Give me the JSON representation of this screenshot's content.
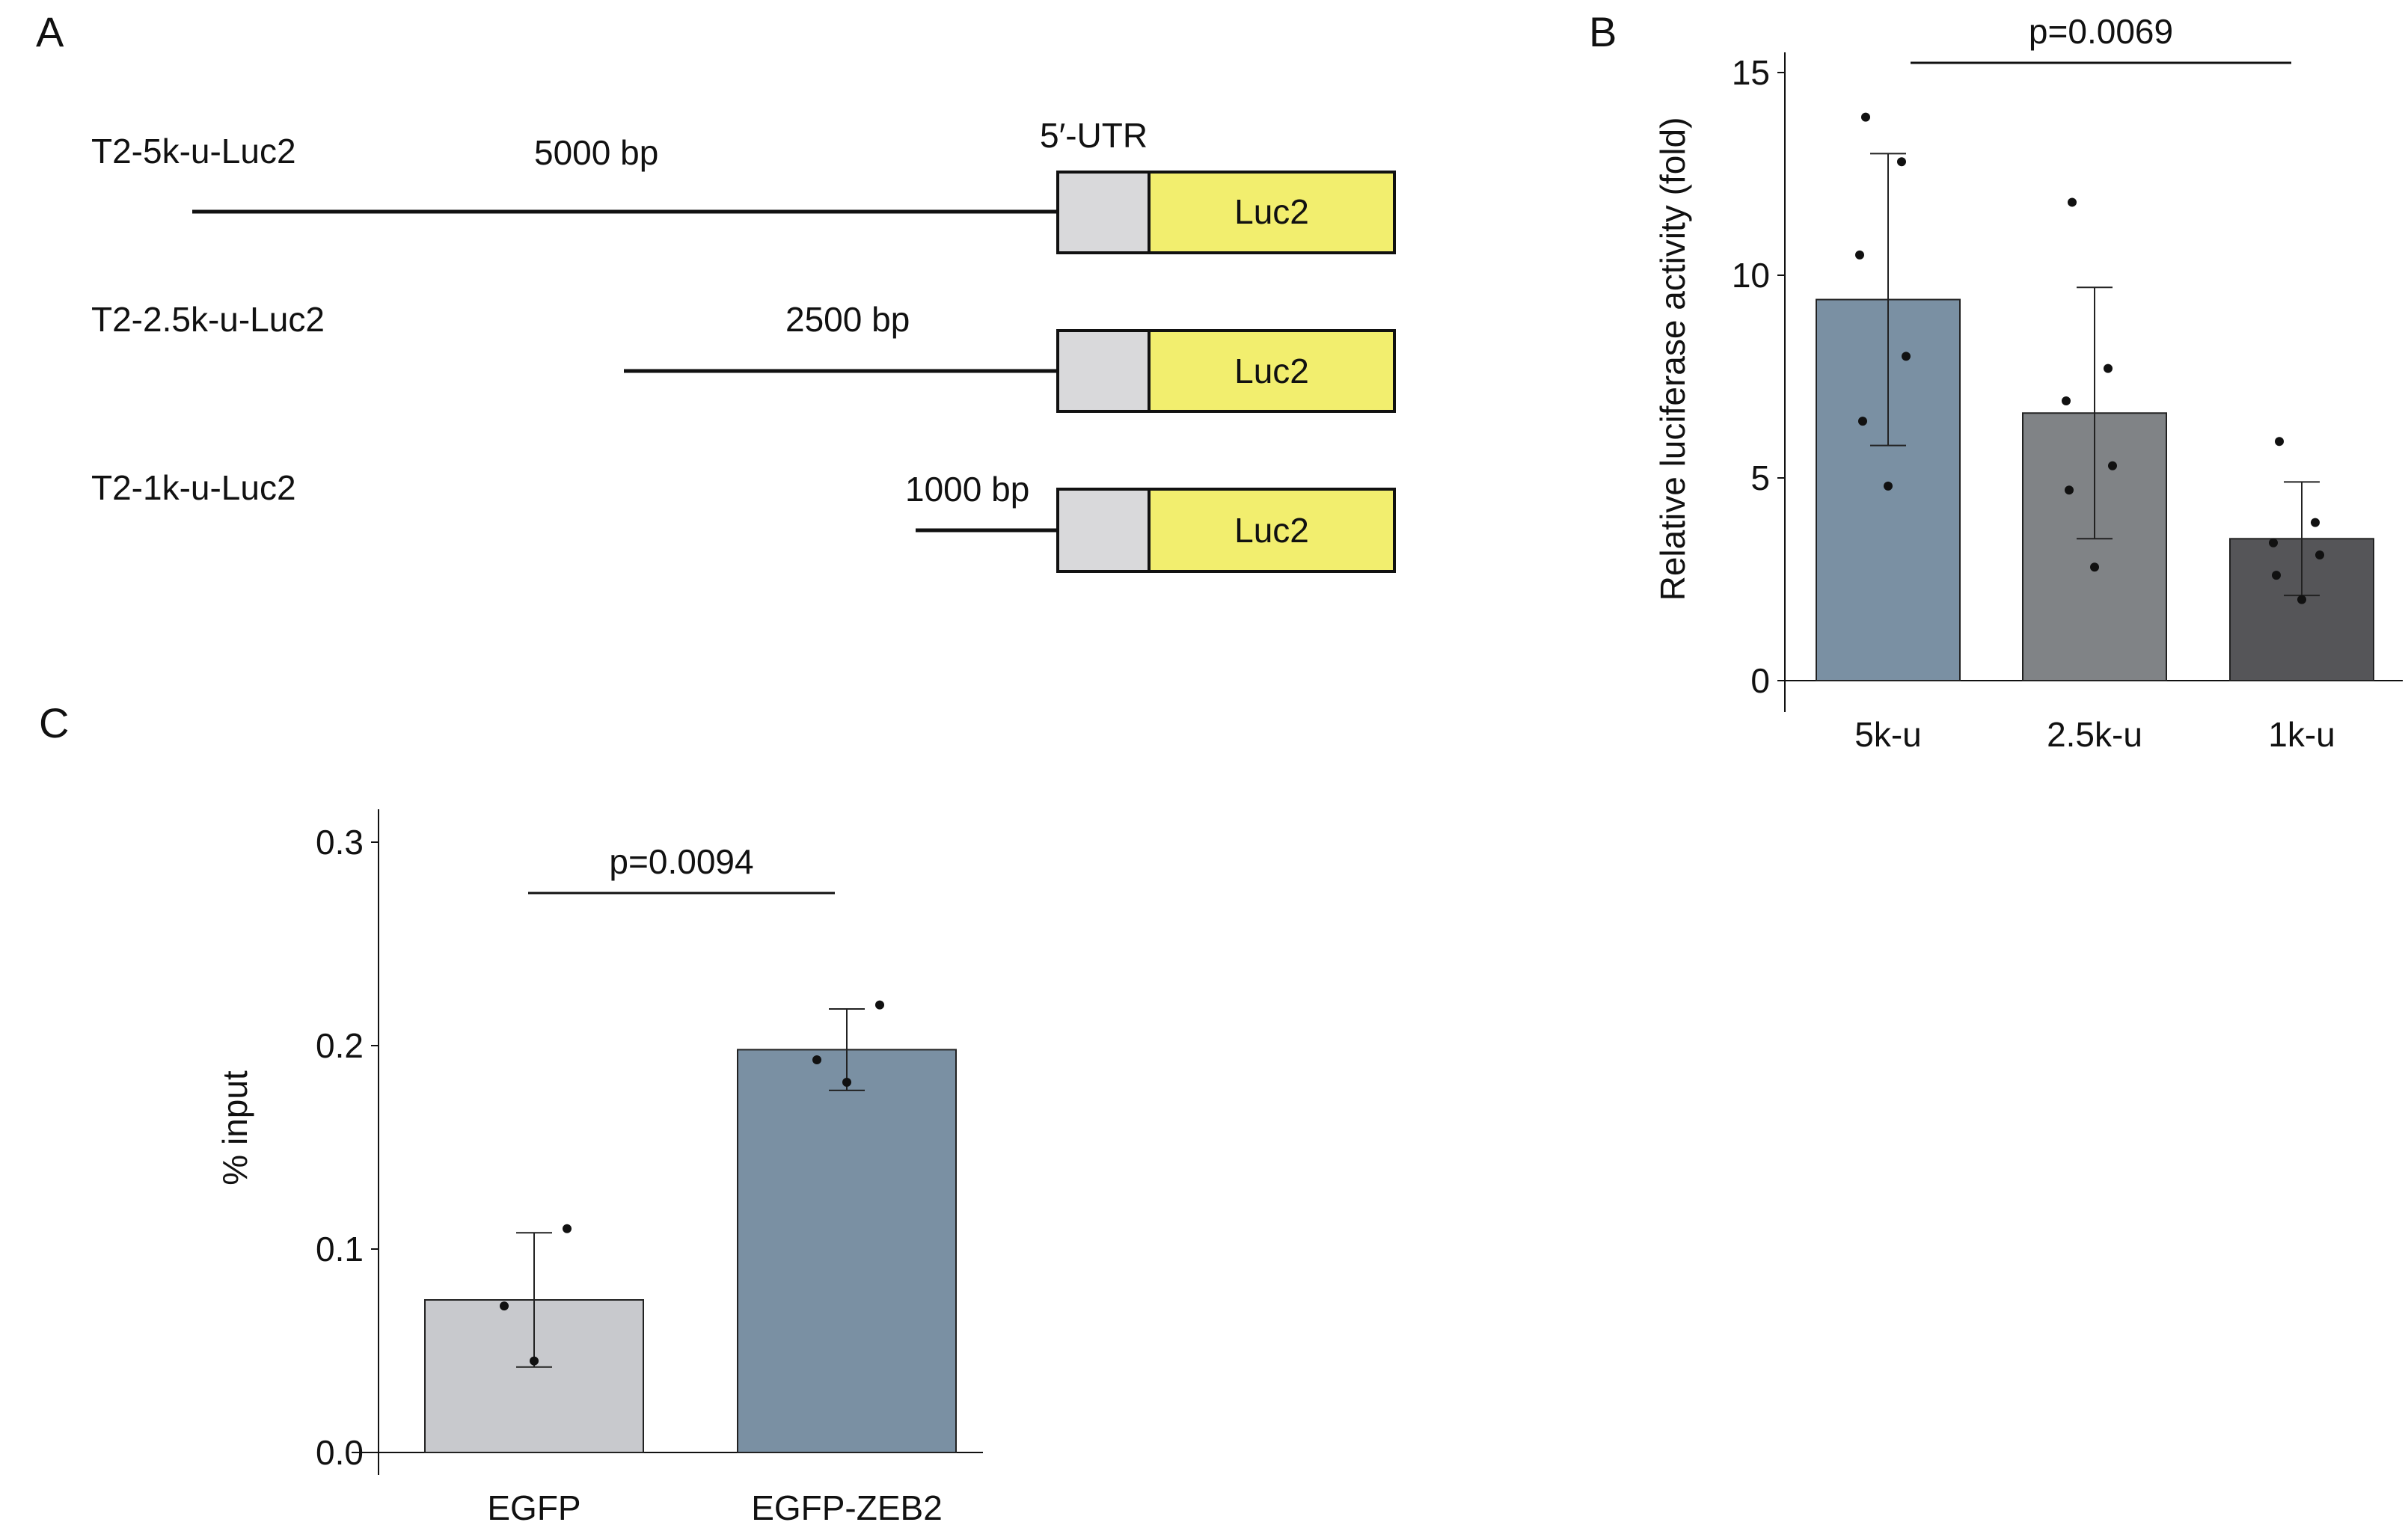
{
  "panel_A": {
    "letter": "A",
    "utr_label": "5′-UTR",
    "colors": {
      "utr_box": "#d9d9db",
      "luc_box": "#f2ee6e",
      "line": "#111111"
    },
    "constructs": [
      {
        "name": "T2-5k-u-Luc2",
        "bp_label": "5000 bp",
        "promoter_bp": 5000,
        "gene_label": "Luc2"
      },
      {
        "name": "T2-2.5k-u-Luc2",
        "bp_label": "2500 bp",
        "promoter_bp": 2500,
        "gene_label": "Luc2"
      },
      {
        "name": "T2-1k-u-Luc2",
        "bp_label": "1000 bp",
        "promoter_bp": 1000,
        "gene_label": "Luc2"
      }
    ]
  },
  "chart_data": [
    {
      "panel": "B",
      "letter": "B",
      "type": "bar",
      "title": "",
      "xlabel": "",
      "ylabel": "Relative luciferase activity (fold)",
      "categories": [
        "5k-u",
        "2.5k-u",
        "1k-u"
      ],
      "values": [
        9.4,
        6.6,
        3.5
      ],
      "errors": [
        3.6,
        3.1,
        1.4
      ],
      "points": [
        [
          13.9,
          12.8,
          10.5,
          8.0,
          6.4,
          4.8
        ],
        [
          11.8,
          7.7,
          6.9,
          5.3,
          4.7,
          2.8
        ],
        [
          5.9,
          3.9,
          3.4,
          3.1,
          2.6,
          2.0
        ]
      ],
      "colors": [
        "#7a90a3",
        "#808386",
        "#555558"
      ],
      "ylim": [
        0,
        15
      ],
      "yticks": [
        0,
        5,
        10,
        15
      ],
      "ytick_labels": [
        "0",
        "5",
        "10",
        "15"
      ],
      "comparison": {
        "from": 0,
        "to": 2,
        "label": "p=0.0069"
      },
      "grid": false
    },
    {
      "panel": "C",
      "letter": "C",
      "type": "bar",
      "title": "",
      "xlabel": "",
      "ylabel": "% input",
      "categories": [
        "EGFP",
        "EGFP-ZEB2"
      ],
      "values": [
        0.075,
        0.198
      ],
      "errors": [
        0.033,
        0.02
      ],
      "points": [
        [
          0.11,
          0.072,
          0.045
        ],
        [
          0.22,
          0.193,
          0.182
        ]
      ],
      "colors": [
        "#c8c9cd",
        "#7a90a3"
      ],
      "ylim": [
        0,
        0.3
      ],
      "yticks": [
        0.0,
        0.1,
        0.2,
        0.3
      ],
      "ytick_labels": [
        "0.0",
        "0.1",
        "0.2",
        "0.3"
      ],
      "comparison": {
        "from": 0,
        "to": 1,
        "label": "p=0.0094"
      },
      "grid": false
    }
  ]
}
